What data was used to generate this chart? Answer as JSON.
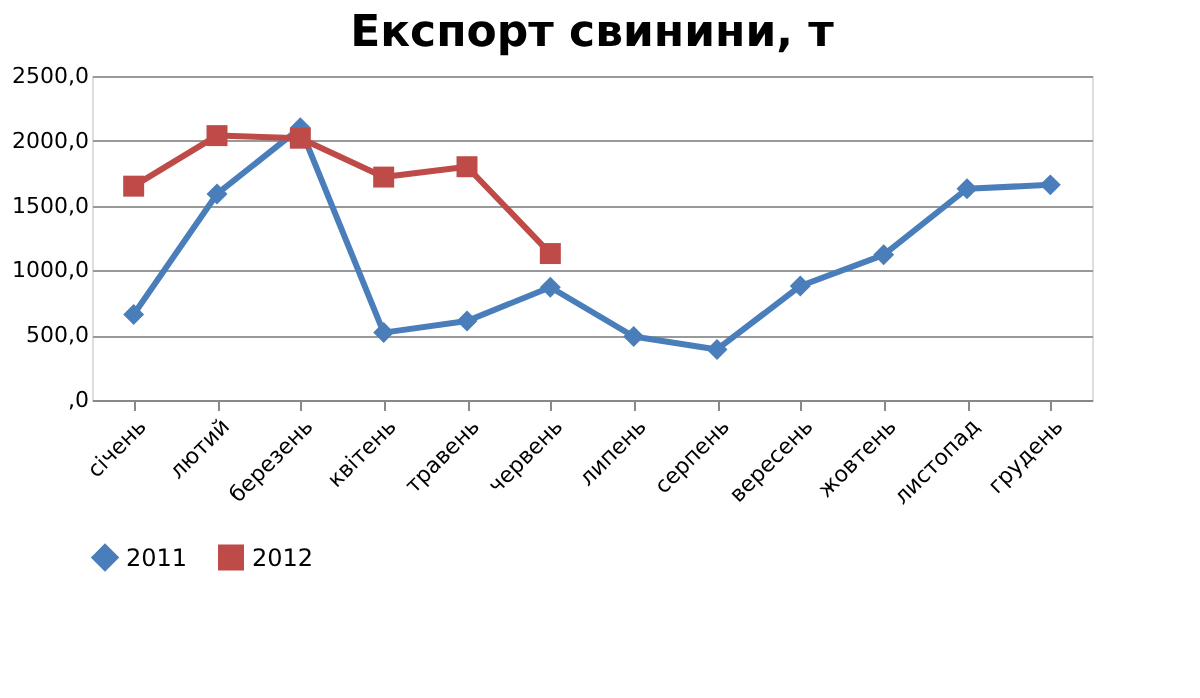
{
  "chart_data": {
    "type": "line",
    "title": "Експорт свинини, т",
    "categories": [
      "січень",
      "лютий",
      "березень",
      "квітень",
      "травень",
      "червень",
      "липень",
      "серпень",
      "вересень",
      "жовтень",
      "листопад",
      "грудень"
    ],
    "series": [
      {
        "name": "2011",
        "color": "#4a7ebb",
        "marker": "diamond",
        "values": [
          660,
          1590,
          2100,
          520,
          610,
          870,
          490,
          390,
          880,
          1120,
          1630,
          1660
        ]
      },
      {
        "name": "2012",
        "color": "#be4b48",
        "marker": "square",
        "values": [
          1650,
          2040,
          2020,
          1720,
          1800,
          1130,
          null,
          null,
          null,
          null,
          null,
          null
        ]
      }
    ],
    "ylim": [
      0,
      2500
    ],
    "yticks": [
      {
        "value": 0,
        "label": ",0"
      },
      {
        "value": 500,
        "label": "500,0"
      },
      {
        "value": 1000,
        "label": "1000,0"
      },
      {
        "value": 1500,
        "label": "1500,0"
      },
      {
        "value": 2000,
        "label": "2000,0"
      },
      {
        "value": 2500,
        "label": "2500,0"
      }
    ],
    "grid": "y",
    "legend": "bottom",
    "line_style": "solid"
  }
}
